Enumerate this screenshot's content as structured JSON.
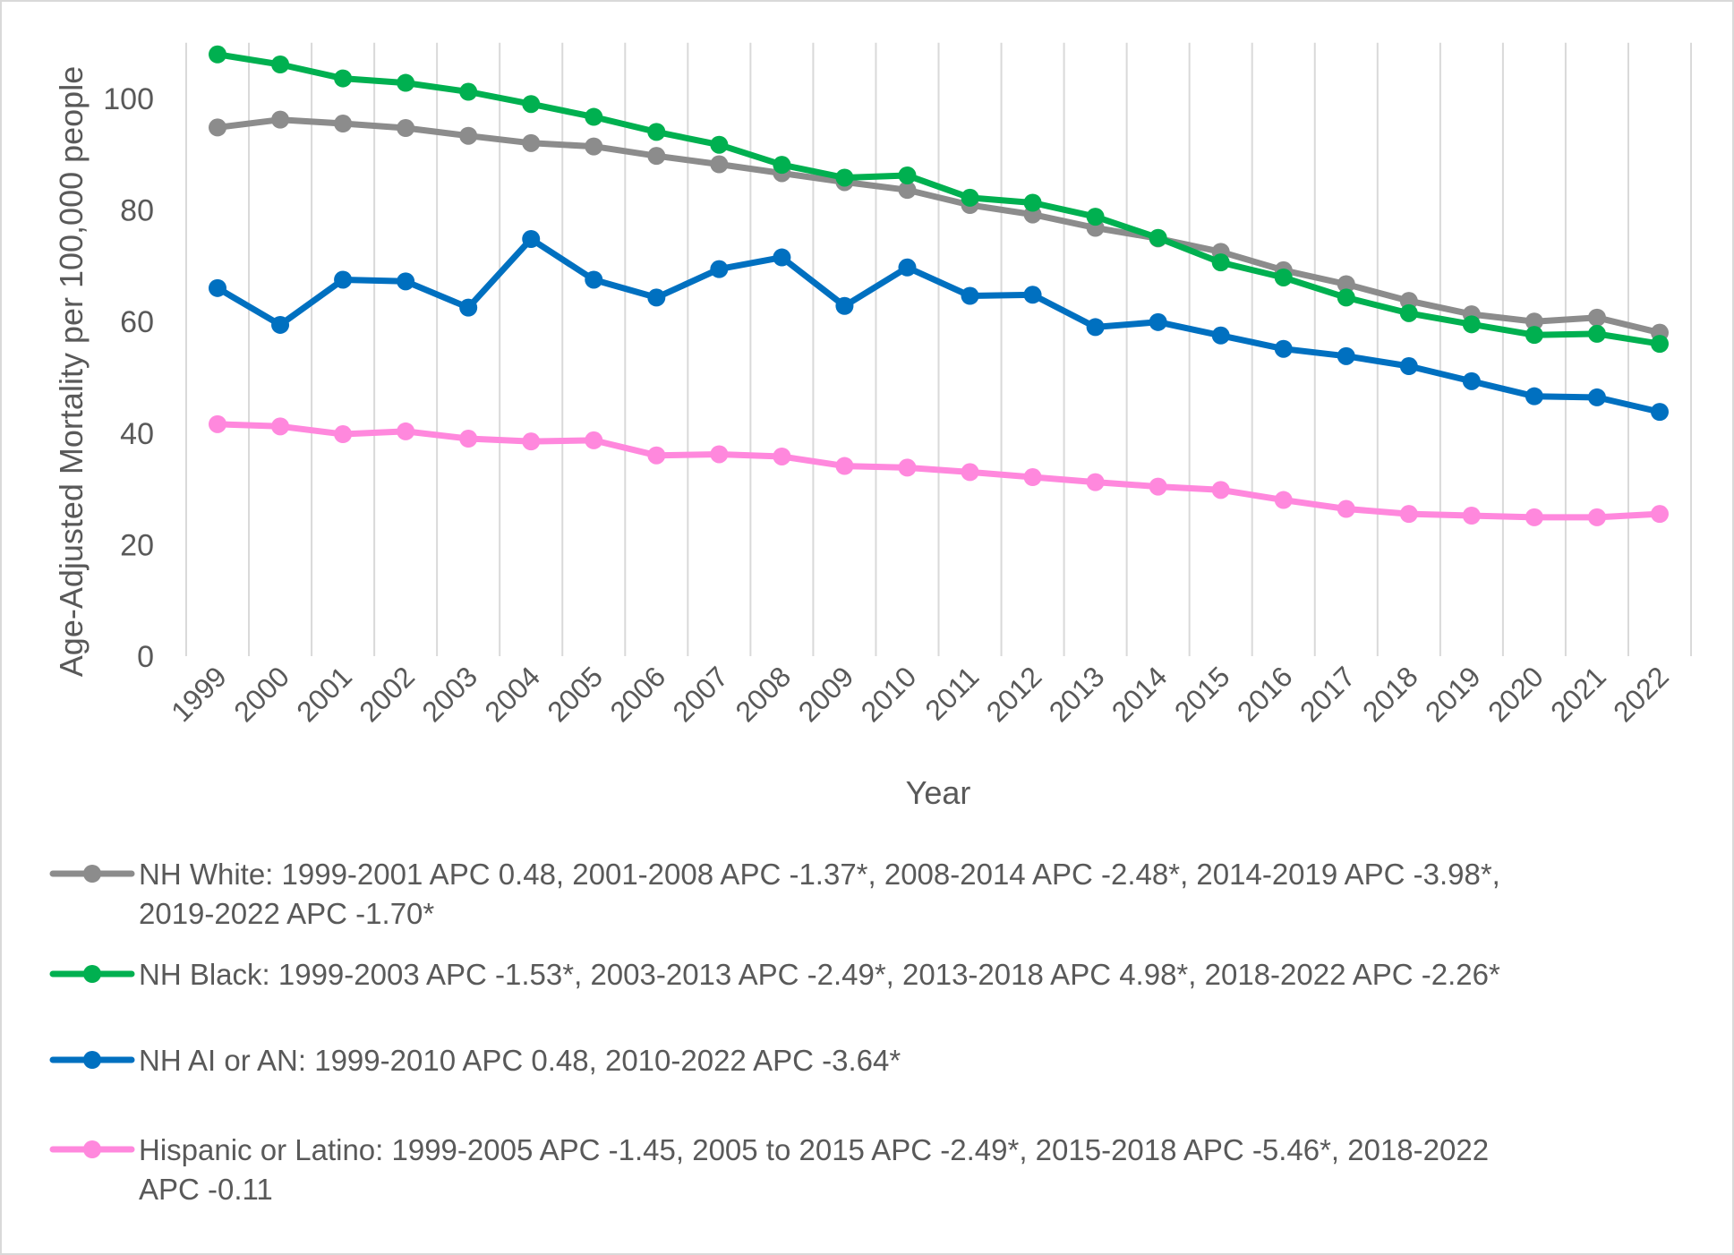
{
  "chart_data": {
    "type": "line",
    "title": "",
    "xlabel": "Year",
    "ylabel": "Age-Adjusted Mortality per 100,000 people",
    "ylim": [
      0,
      110
    ],
    "yticks": [
      "0",
      "20",
      "40",
      "60",
      "80",
      "100"
    ],
    "grid": "vertical",
    "legend_position": "bottom",
    "categories": [
      "1999",
      "2000",
      "2001",
      "2002",
      "2003",
      "2004",
      "2005",
      "2006",
      "2007",
      "2008",
      "2009",
      "2010",
      "2011",
      "2012",
      "2013",
      "2014",
      "2015",
      "2016",
      "2017",
      "2018",
      "2019",
      "2020",
      "2021",
      "2022"
    ],
    "series": [
      {
        "name": "NH White: 1999-2001 APC 0.48, 2001-2008 APC -1.37*, 2008-2014 APC -2.48*, 2014-2019 APC -3.98*, 2019-2022 APC -1.70*",
        "name_lines": [
          "NH White: 1999-2001 APC 0.48, 2001-2008 APC -1.37*, 2008-2014 APC -2.48*, 2014-2019 APC -3.98*,",
          "2019-2022 APC -1.70*"
        ],
        "color": "#8c8c8c",
        "values": [
          94.8,
          96.2,
          95.5,
          94.7,
          93.3,
          92.0,
          91.4,
          89.7,
          88.2,
          86.6,
          85.0,
          83.6,
          80.9,
          79.2,
          76.8,
          74.9,
          72.5,
          69.2,
          66.7,
          63.7,
          61.3,
          60.0,
          60.7,
          58.0
        ]
      },
      {
        "name": "NH Black: 1999-2003 APC -1.53*, 2003-2013 APC -2.49*, 2013-2018 APC 4.98*, 2018-2022 APC -2.26*",
        "name_lines": [
          "NH Black: 1999-2003 APC -1.53*, 2003-2013 APC -2.49*, 2013-2018 APC 4.98*, 2018-2022 APC -2.26*"
        ],
        "color": "#00b050",
        "values": [
          107.9,
          106.1,
          103.6,
          102.8,
          101.2,
          99.0,
          96.7,
          94.0,
          91.7,
          88.1,
          85.8,
          86.2,
          82.2,
          81.3,
          78.8,
          75.0,
          70.6,
          67.9,
          64.3,
          61.5,
          59.5,
          57.6,
          57.8,
          56.0
        ]
      },
      {
        "name": "NH AI or AN: 1999-2010 APC 0.48, 2010-2022 APC -3.64*",
        "name_lines": [
          "NH AI or AN: 1999-2010 APC 0.48, 2010-2022 APC -3.64*"
        ],
        "color": "#0070c0",
        "values": [
          66.0,
          59.4,
          67.5,
          67.2,
          62.5,
          74.8,
          67.5,
          64.3,
          69.4,
          71.5,
          62.8,
          69.7,
          64.6,
          64.8,
          59.0,
          59.9,
          57.5,
          55.1,
          53.8,
          52.0,
          49.3,
          46.6,
          46.4,
          43.8
        ]
      },
      {
        "name": "Hispanic or Latino: 1999-2005 APC -1.45, 2005 to 2015 APC -2.49*, 2015-2018 APC -5.46*, 2018-2022 APC -0.11",
        "name_lines": [
          "Hispanic or Latino: 1999-2005 APC -1.45, 2005 to 2015 APC -2.49*, 2015-2018 APC -5.46*, 2018-2022",
          "APC -0.11"
        ],
        "color": "#ff88dd",
        "values": [
          41.6,
          41.2,
          39.8,
          40.3,
          39.0,
          38.5,
          38.7,
          36.0,
          36.2,
          35.8,
          34.1,
          33.8,
          33.0,
          32.1,
          31.2,
          30.4,
          29.8,
          28.0,
          26.4,
          25.5,
          25.2,
          24.9,
          24.9,
          25.5
        ]
      }
    ]
  }
}
